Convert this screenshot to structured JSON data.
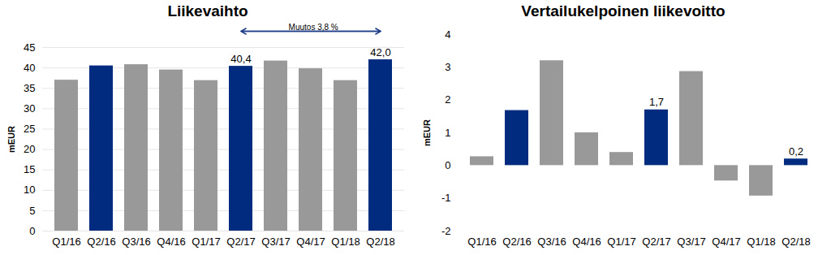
{
  "chart_data": [
    {
      "type": "bar",
      "title": "Liikevaihto",
      "y_label": "mEUR",
      "categories": [
        "Q1/16",
        "Q2/16",
        "Q3/16",
        "Q4/16",
        "Q1/17",
        "Q2/17",
        "Q3/17",
        "Q4/17",
        "Q1/18",
        "Q2/18"
      ],
      "values": [
        37.0,
        40.5,
        40.8,
        39.5,
        36.9,
        40.4,
        41.7,
        39.8,
        36.9,
        42.0
      ],
      "colors": [
        "#999999",
        "#002b7f",
        "#999999",
        "#999999",
        "#999999",
        "#002b7f",
        "#999999",
        "#999999",
        "#999999",
        "#002b7f"
      ],
      "data_labels": true,
      "value_labels": [
        null,
        null,
        null,
        null,
        null,
        "40,4",
        null,
        null,
        null,
        "42,0"
      ],
      "ylim": [
        0,
        45
      ],
      "yticks": [
        0,
        5,
        10,
        15,
        20,
        25,
        30,
        35,
        40,
        45
      ],
      "grid": true,
      "annotation": {
        "text": "Muutos 3,8 %",
        "from": "Q2/17",
        "to": "Q2/18"
      }
    },
    {
      "type": "bar",
      "title": "Vertailukelpoinen liikevoitto",
      "y_label": "mEUR",
      "categories": [
        "Q1/16",
        "Q2/16",
        "Q3/16",
        "Q4/16",
        "Q1/17",
        "Q2/17",
        "Q3/17",
        "Q4/17",
        "Q1/18",
        "Q2/18"
      ],
      "values": [
        0.27,
        1.68,
        3.2,
        1.0,
        0.4,
        1.7,
        2.87,
        -0.47,
        -0.93,
        0.2
      ],
      "colors": [
        "#999999",
        "#002b7f",
        "#999999",
        "#999999",
        "#999999",
        "#002b7f",
        "#999999",
        "#999999",
        "#999999",
        "#002b7f"
      ],
      "data_labels": true,
      "value_labels": [
        null,
        null,
        null,
        null,
        null,
        "1,7",
        null,
        null,
        null,
        "0,2"
      ],
      "ylim": [
        -2,
        4
      ],
      "yticks": [
        -2,
        -1,
        0,
        1,
        2,
        3,
        4
      ],
      "grid": false
    }
  ]
}
